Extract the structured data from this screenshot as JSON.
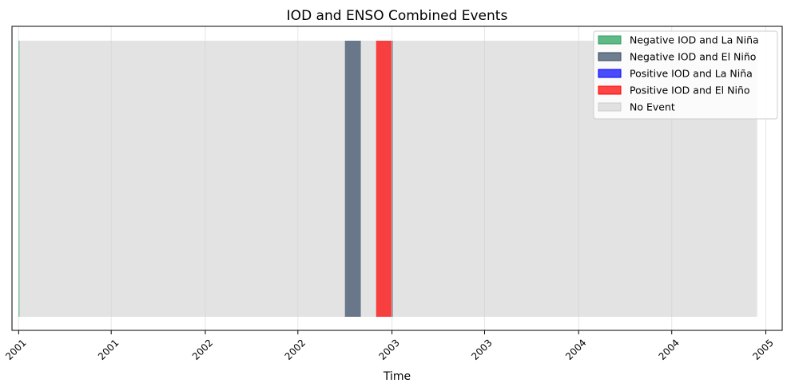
{
  "chart_data": {
    "type": "bar",
    "title": "IOD and ENSO Combined Events",
    "xlabel": "Time",
    "ylabel": "",
    "xlim": [
      "2000-12-19",
      "2005-02-02"
    ],
    "grid": true,
    "legend_position": "top-right",
    "x_ticks": [
      {
        "date": "2001-01-01",
        "label": "2001"
      },
      {
        "date": "2001-07-01",
        "label": "2001"
      },
      {
        "date": "2002-01-01",
        "label": "2002"
      },
      {
        "date": "2002-07-01",
        "label": "2002"
      },
      {
        "date": "2003-01-01",
        "label": "2003"
      },
      {
        "date": "2003-07-01",
        "label": "2003"
      },
      {
        "date": "2004-01-01",
        "label": "2004"
      },
      {
        "date": "2004-07-01",
        "label": "2004"
      },
      {
        "date": "2005-01-01",
        "label": "2005"
      }
    ],
    "series": [
      {
        "name": "Negative IOD and La Niña",
        "color": "#2ca25f",
        "opacity": 0.75,
        "spans": [
          [
            "2001-01-01",
            "2001-01-02"
          ]
        ]
      },
      {
        "name": "Negative IOD and El Niño",
        "color": "#334863",
        "opacity": 0.7,
        "spans": [
          [
            "2002-10-01",
            "2002-11-01"
          ],
          [
            "2003-01-01",
            "2003-01-02"
          ]
        ]
      },
      {
        "name": "Positive IOD and La Niña",
        "color": "#0000ff",
        "opacity": 0.7,
        "spans": []
      },
      {
        "name": "Positive IOD and El Niño",
        "color": "#ff0000",
        "opacity": 0.72,
        "spans": [
          [
            "2002-12-01",
            "2002-12-31"
          ]
        ]
      },
      {
        "name": "No Event",
        "color": "#cccccc",
        "opacity": 0.55,
        "spans": [
          [
            "2001-01-01",
            "2004-12-15"
          ]
        ]
      }
    ]
  }
}
